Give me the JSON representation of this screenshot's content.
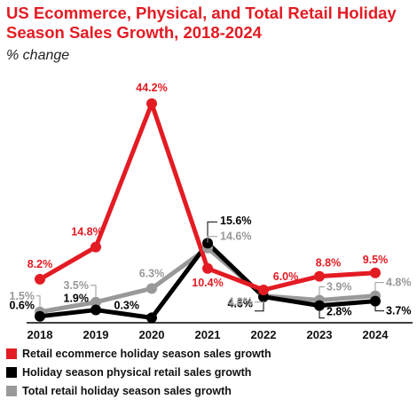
{
  "header": {
    "title": "US Ecommerce, Physical, and Total Retail Holiday Season Sales Growth, 2018-2024",
    "subtitle": "% change"
  },
  "chart_data": {
    "type": "line",
    "x": [
      "2018",
      "2019",
      "2020",
      "2021",
      "2022",
      "2023",
      "2024"
    ],
    "ylim": [
      0,
      45
    ],
    "grid": false,
    "legend_position": "bottom-left",
    "series": [
      {
        "name": "Retail ecommerce holiday season sales growth",
        "color": "#e31b23",
        "values": [
          8.2,
          14.8,
          44.2,
          10.4,
          6.0,
          8.8,
          9.5
        ],
        "labels": [
          "8.2%",
          "14.8%",
          "44.2%",
          "10.4%",
          "6.0%",
          "8.8%",
          "9.5%"
        ]
      },
      {
        "name": "Holiday season physical retail sales growth",
        "color": "#000000",
        "values": [
          0.6,
          1.9,
          0.3,
          15.6,
          4.6,
          2.8,
          3.7
        ],
        "labels": [
          "0.6%",
          "1.9%",
          "0.3%",
          "15.6%",
          "4.6%",
          "2.8%",
          "3.7%"
        ]
      },
      {
        "name": "Total retail holiday season sales growth",
        "color": "#999999",
        "values": [
          1.5,
          3.5,
          6.3,
          14.6,
          4.8,
          3.9,
          4.8
        ],
        "labels": [
          "1.5%",
          "3.5%",
          "6.3%",
          "14.6%",
          "4.8%",
          "3.9%",
          "4.8%"
        ]
      }
    ]
  }
}
